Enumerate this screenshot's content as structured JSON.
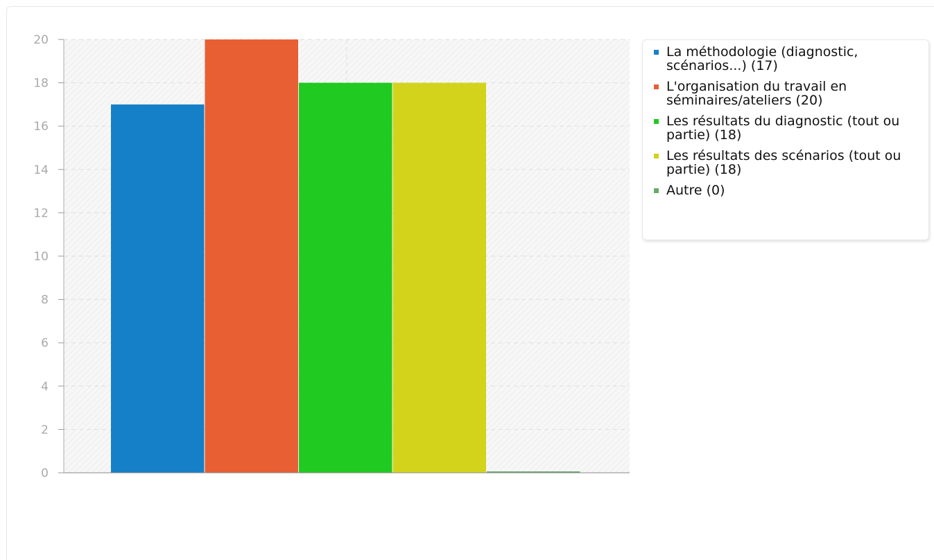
{
  "chart_data": {
    "type": "bar",
    "categories": [
      "La méthodologie (diagnostic, scénarios...) (17)",
      "L'organisation du travail en séminaires/ateliers (20)",
      "Les résultats du diagnostic (tout ou partie) (18)",
      "Les résultats des scénarios (tout ou partie) (18)",
      "Autre (0)"
    ],
    "values": [
      17,
      20,
      18,
      18,
      0
    ],
    "colors": [
      "#1580c8",
      "#e85f33",
      "#21ca21",
      "#d3d31c",
      "#6ba86b"
    ],
    "ylim": [
      0,
      20
    ],
    "yticks": [
      "0",
      "2",
      "4",
      "6",
      "8",
      "10",
      "12",
      "14",
      "16",
      "18",
      "20"
    ],
    "grid": true,
    "legend_position": "right",
    "title": "",
    "xlabel": "",
    "ylabel": ""
  },
  "legend": {
    "items": [
      {
        "label": "La méthodologie (diagnostic, scénarios...) (17)",
        "color": "#1580c8"
      },
      {
        "label": "L'organisation du travail en séminaires/ateliers (20)",
        "color": "#e85f33"
      },
      {
        "label": "Les résultats du diagnostic (tout ou partie) (18)",
        "color": "#21ca21"
      },
      {
        "label": "Les résultats des scénarios (tout ou partie) (18)",
        "color": "#d3d31c"
      },
      {
        "label": "Autre (0)",
        "color": "#6ba86b"
      }
    ]
  }
}
